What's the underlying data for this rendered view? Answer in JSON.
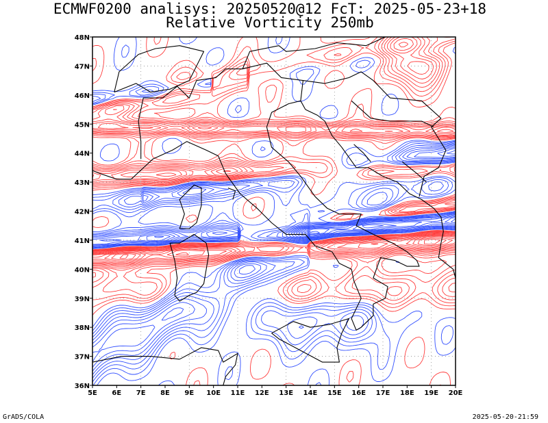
{
  "title": {
    "line1": "ECMWF0200 analisys: 20250520@12 FcT: 2025-05-23+18",
    "line2": "Relative Vorticity 250mb"
  },
  "footer": {
    "left": "GrADS/COLA",
    "right": "2025-05-20-21:59"
  },
  "map": {
    "lon_range": [
      5,
      20
    ],
    "lat_range": [
      36,
      48
    ],
    "lon_labels": [
      "5E",
      "6E",
      "7E",
      "8E",
      "9E",
      "10E",
      "11E",
      "12E",
      "13E",
      "14E",
      "15E",
      "16E",
      "17E",
      "18E",
      "19E",
      "20E"
    ],
    "lat_labels": [
      "36N",
      "37N",
      "38N",
      "39N",
      "40N",
      "41N",
      "42N",
      "43N",
      "44N",
      "45N",
      "46N",
      "47N",
      "48N"
    ],
    "colors": {
      "positive": "#ff3b3b",
      "negative": "#2f4dff",
      "coast": "#000000",
      "grid": "#8a8a8a"
    },
    "grid": "dotted"
  }
}
